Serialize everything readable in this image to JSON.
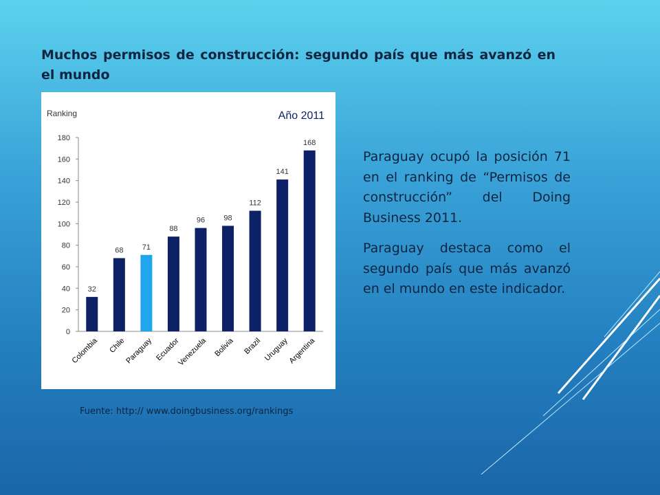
{
  "slide": {
    "title": "Muchos permisos de construcción: segundo país que más avanzó en el mundo",
    "paragraphs": [
      "Paraguay ocupó la posición 71 en el ranking de “Permisos de construcción” del Doing Business 2011.",
      "Paraguay destaca como el segundo país que más avanzó en el mundo en este indicador."
    ],
    "source": "Fuente: http:// www.doingbusiness.org/rankings"
  },
  "colors": {
    "bar": "#0d2166",
    "highlight_bar": "#20a6ec",
    "axis_text": "#333333",
    "year_text": "#0d2166"
  },
  "chart_data": {
    "type": "bar",
    "title": "Año 2011",
    "ylabel": "Ranking",
    "xlabel": "",
    "categories": [
      "Colombia",
      "Chile",
      "Paraguay",
      "Ecuador",
      "Venezuela",
      "Bolivia",
      "Brazil",
      "Uruguay",
      "Argentina"
    ],
    "values": [
      32,
      68,
      71,
      88,
      96,
      98,
      112,
      141,
      168
    ],
    "data_labels": [
      "32",
      "68",
      "71",
      "88",
      "96",
      "98",
      "112",
      "141",
      "168"
    ],
    "highlight": "Paraguay",
    "ylim": [
      0,
      180
    ],
    "yticks": [
      0,
      20,
      40,
      60,
      80,
      100,
      120,
      140,
      160,
      180
    ],
    "grid": false,
    "legend": "none"
  }
}
